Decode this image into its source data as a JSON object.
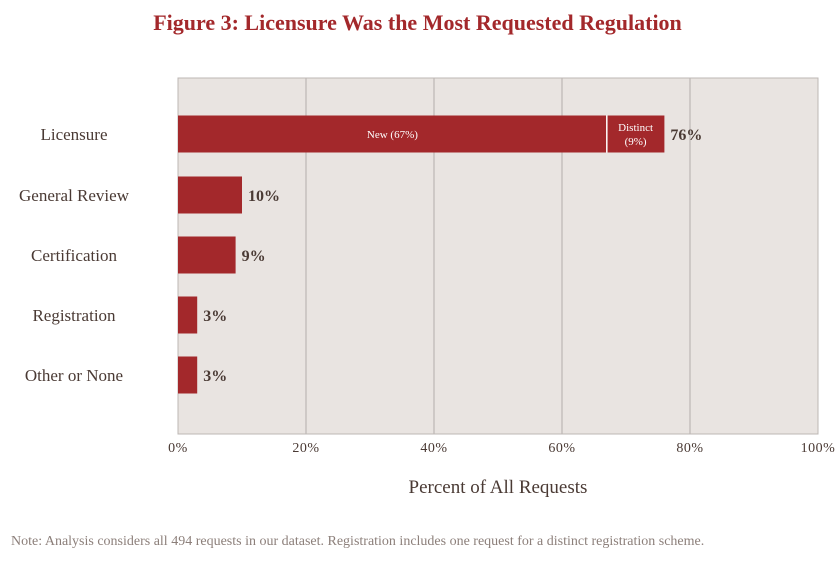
{
  "chart_data": {
    "type": "bar",
    "orientation": "horizontal",
    "stacked": true,
    "title": "Figure 3: Licensure Was the Most Requested Regulation",
    "xlabel": "Percent of All Requests",
    "ylabel": "",
    "xlim": [
      0,
      100
    ],
    "x_ticks": [
      "0%",
      "20%",
      "40%",
      "60%",
      "80%",
      "100%"
    ],
    "x_tick_values": [
      0,
      20,
      40,
      60,
      80,
      100
    ],
    "grid": "vertical",
    "categories": [
      "Licensure",
      "General Review",
      "Certification",
      "Registration",
      "Other or None"
    ],
    "totals": [
      76,
      10,
      9,
      3,
      3
    ],
    "total_labels": [
      "76%",
      "10%",
      "9%",
      "3%",
      "3%"
    ],
    "series": [
      {
        "name": "New",
        "values": [
          67,
          10,
          9,
          3,
          3
        ],
        "segment_labels": [
          "New (67%)",
          "",
          "",
          "",
          ""
        ]
      },
      {
        "name": "Distinct",
        "values": [
          9,
          0,
          0,
          0,
          0
        ],
        "segment_labels": [
          "Distinct (9%)",
          "",
          "",
          "",
          ""
        ]
      }
    ],
    "colors": {
      "bar": "#a3282b",
      "plot_background": "#e9e4e1",
      "grid": "#bdb7b4",
      "title": "#a3282b",
      "text": "#4a3a34"
    }
  },
  "note": "Note: Analysis considers all 494 requests in our dataset. Registration includes one request for a distinct registration scheme."
}
